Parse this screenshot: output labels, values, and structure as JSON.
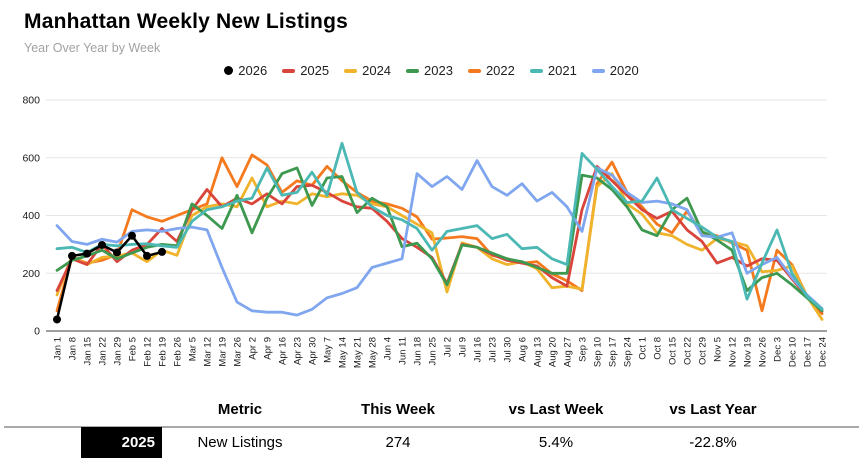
{
  "header": {
    "title": "Manhattan Weekly New Listings",
    "subtitle": "Year Over Year by Week"
  },
  "legend": [
    {
      "label": "2026",
      "color": "#000000",
      "marker": "dot"
    },
    {
      "label": "2025",
      "color": "#d9453b",
      "marker": "dash"
    },
    {
      "label": "2024",
      "color": "#f0b42c",
      "marker": "dash"
    },
    {
      "label": "2023",
      "color": "#3d9950",
      "marker": "dash"
    },
    {
      "label": "2022",
      "color": "#f5791d",
      "marker": "dash"
    },
    {
      "label": "2021",
      "color": "#4bb8b4",
      "marker": "dash"
    },
    {
      "label": "2020",
      "color": "#7fa6ee",
      "marker": "dash"
    }
  ],
  "chart_data": {
    "type": "line",
    "title": "Manhattan Weekly New Listings",
    "xlabel": "",
    "ylabel": "",
    "ylim": [
      0,
      800
    ],
    "y_ticks": [
      0,
      200,
      400,
      600,
      800
    ],
    "grid": true,
    "legend_position": "top",
    "x_labels": [
      "Jan 1",
      "Jan 8",
      "Jan 15",
      "Jan 22",
      "Jan 29",
      "Feb 5",
      "Feb 12",
      "Feb 19",
      "Feb 26",
      "Mar 5",
      "Mar 12",
      "Mar 19",
      "Mar 26",
      "Apr 2",
      "Apr 9",
      "Apr 16",
      "Apr 23",
      "Apr 30",
      "May 7",
      "May 14",
      "May 21",
      "May 28",
      "Jun 4",
      "Jun 11",
      "Jun 18",
      "Jun 25",
      "Jul 2",
      "Jul 9",
      "Jul 16",
      "Jul 23",
      "Jul 30",
      "Aug 6",
      "Aug 13",
      "Aug 20",
      "Aug 27",
      "Sep 3",
      "Sep 10",
      "Sep 17",
      "Sep 24",
      "Oct 1",
      "Oct 8",
      "Oct 15",
      "Oct 22",
      "Oct 29",
      "Nov 5",
      "Nov 12",
      "Nov 19",
      "Nov 26",
      "Dec 3",
      "Dec 10",
      "Dec 17",
      "Dec 24"
    ],
    "series": [
      {
        "name": "2026",
        "color": "#000000",
        "marker": "dot",
        "values": [
          40,
          260,
          268,
          298,
          272,
          330,
          260,
          274
        ]
      },
      {
        "name": "2025",
        "color": "#d9453b",
        "marker": "dash",
        "values": [
          140,
          250,
          230,
          300,
          240,
          280,
          300,
          355,
          310,
          420,
          490,
          430,
          460,
          440,
          475,
          440,
          500,
          505,
          480,
          450,
          430,
          425,
          380,
          320,
          290,
          255,
          165,
          300,
          290,
          265,
          245,
          235,
          225,
          185,
          155,
          420,
          570,
          520,
          470,
          420,
          390,
          415,
          350,
          310,
          235,
          255,
          225,
          250,
          245,
          180,
          120,
          68
        ]
      },
      {
        "name": "2024",
        "color": "#f0b42c",
        "marker": "dash",
        "values": [
          125,
          260,
          230,
          255,
          260,
          270,
          240,
          280,
          262,
          400,
          430,
          440,
          430,
          530,
          430,
          450,
          440,
          475,
          465,
          475,
          470,
          440,
          430,
          400,
          370,
          340,
          135,
          305,
          290,
          250,
          230,
          240,
          215,
          150,
          155,
          145,
          500,
          545,
          440,
          405,
          340,
          330,
          300,
          280,
          320,
          310,
          295,
          205,
          210,
          225,
          120,
          40
        ]
      },
      {
        "name": "2023",
        "color": "#3d9950",
        "marker": "dash",
        "values": [
          210,
          245,
          260,
          280,
          250,
          270,
          290,
          300,
          295,
          440,
          400,
          355,
          470,
          340,
          460,
          545,
          565,
          435,
          530,
          535,
          410,
          460,
          430,
          292,
          304,
          250,
          160,
          298,
          290,
          270,
          250,
          240,
          220,
          200,
          200,
          540,
          530,
          490,
          430,
          350,
          330,
          420,
          460,
          345,
          315,
          280,
          140,
          185,
          200,
          160,
          115,
          70
        ]
      },
      {
        "name": "2022",
        "color": "#f5791d",
        "marker": "dash",
        "values": [
          70,
          255,
          235,
          245,
          265,
          420,
          395,
          380,
          400,
          420,
          440,
          600,
          500,
          610,
          575,
          480,
          520,
          505,
          570,
          520,
          480,
          450,
          440,
          425,
          395,
          318,
          322,
          327,
          320,
          262,
          250,
          235,
          240,
          198,
          174,
          140,
          510,
          585,
          480,
          430,
          370,
          340,
          415,
          340,
          330,
          305,
          280,
          70,
          280,
          230,
          120,
          60
        ]
      },
      {
        "name": "2021",
        "color": "#4bb8b4",
        "marker": "dash",
        "values": [
          285,
          290,
          272,
          300,
          295,
          300,
          302,
          295,
          290,
          380,
          420,
          430,
          450,
          460,
          565,
          470,
          480,
          550,
          470,
          650,
          480,
          430,
          400,
          385,
          355,
          280,
          345,
          355,
          365,
          320,
          335,
          285,
          290,
          250,
          230,
          615,
          560,
          500,
          445,
          450,
          530,
          420,
          390,
          360,
          325,
          310,
          110,
          235,
          350,
          200,
          120,
          75
        ]
      },
      {
        "name": "2020",
        "color": "#7fa6ee",
        "marker": "dash",
        "values": [
          365,
          310,
          300,
          318,
          308,
          345,
          350,
          345,
          355,
          360,
          350,
          220,
          100,
          70,
          65,
          65,
          55,
          75,
          115,
          130,
          150,
          220,
          235,
          250,
          545,
          500,
          535,
          490,
          590,
          500,
          470,
          510,
          450,
          480,
          430,
          345,
          565,
          540,
          480,
          445,
          450,
          440,
          420,
          330,
          325,
          340,
          200,
          230,
          255,
          185,
          125,
          78
        ]
      }
    ]
  },
  "table": {
    "columns": [
      "Metric",
      "This Week",
      "vs Last Week",
      "vs Last Year"
    ],
    "rows": [
      {
        "badge": "2025",
        "metric": "New Listings",
        "this_week": "274",
        "vs_last_week": "5.4%",
        "vs_last_year": "-22.8%"
      }
    ]
  }
}
